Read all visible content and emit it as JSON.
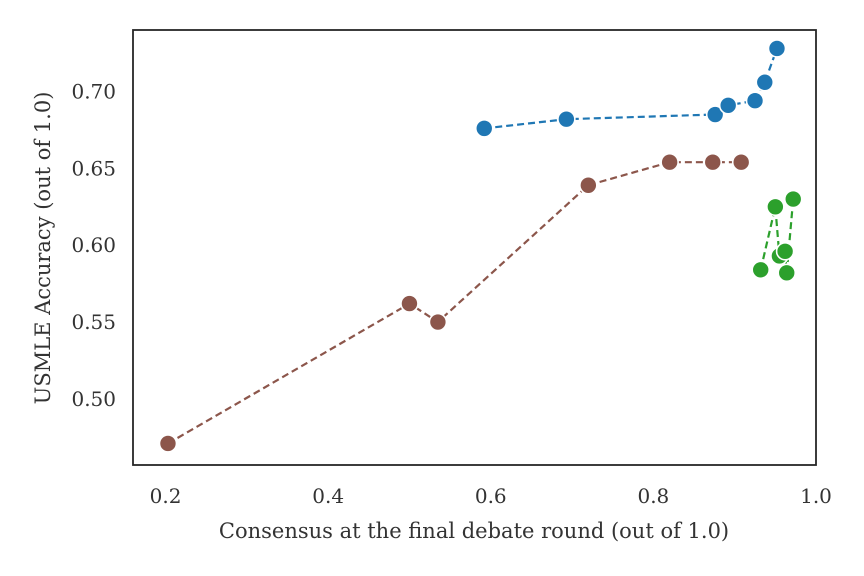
{
  "chart_data": {
    "type": "scatter",
    "title": "",
    "xlabel": "Consensus at the final debate round (out of 1.0)",
    "ylabel": "USMLE Accuracy (out of 1.0)",
    "xlim": [
      0.16,
      1.0
    ],
    "ylim": [
      0.457,
      0.74
    ],
    "xticks": [
      0.2,
      0.4,
      0.6,
      0.8,
      1.0
    ],
    "xtick_labels": [
      "0.2",
      "0.4",
      "0.6",
      "0.8",
      "1.0"
    ],
    "yticks": [
      0.5,
      0.55,
      0.6,
      0.65,
      0.7
    ],
    "ytick_labels": [
      "0.50",
      "0.55",
      "0.60",
      "0.65",
      "0.70"
    ],
    "grid": false,
    "series": [
      {
        "name": "blue",
        "color": "#1f77b4",
        "x": [
          0.592,
          0.693,
          0.876,
          0.892,
          0.925,
          0.937,
          0.952
        ],
        "y": [
          0.676,
          0.682,
          0.685,
          0.691,
          0.694,
          0.706,
          0.728
        ]
      },
      {
        "name": "brown",
        "color": "#8c564b",
        "x": [
          0.203,
          0.5,
          0.535,
          0.72,
          0.82,
          0.873,
          0.908
        ],
        "y": [
          0.471,
          0.562,
          0.55,
          0.639,
          0.654,
          0.654,
          0.654
        ]
      },
      {
        "name": "green",
        "color": "#2ca02c",
        "x": [
          0.932,
          0.95,
          0.955,
          0.962,
          0.964,
          0.972
        ],
        "y": [
          0.584,
          0.625,
          0.593,
          0.596,
          0.582,
          0.63
        ]
      }
    ]
  }
}
